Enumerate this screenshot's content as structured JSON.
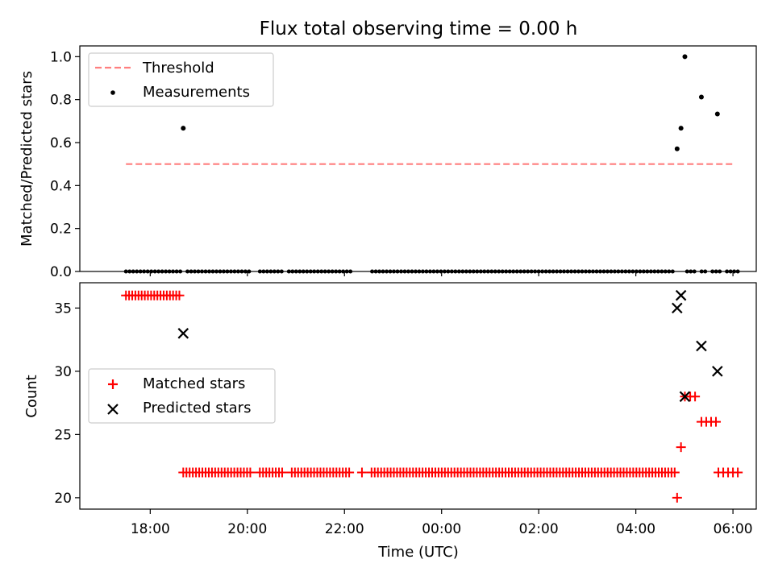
{
  "title": "Flux total observing time = 0.00 h",
  "colors": {
    "threshold": "#ff7f7f",
    "measurement": "#000000",
    "matched": "#ff0000",
    "predicted": "#000000",
    "axes": "#000000",
    "legend_border": "#cccccc"
  },
  "chart_data": [
    {
      "type": "scatter",
      "title": "Flux total observing time = 0.00 h",
      "xlabel": "",
      "ylabel": "Matched/Predicted stars",
      "xlim_hours": [
        16.55,
        30.48
      ],
      "ylim": [
        0,
        1.05
      ],
      "xticks": [
        18,
        20,
        22,
        24,
        26,
        28,
        30
      ],
      "yticks": [
        0.0,
        0.2,
        0.4,
        0.6,
        0.8,
        1.0
      ],
      "ytick_labels": [
        "0.0",
        "0.2",
        "0.4",
        "0.6",
        "0.8",
        "1.0"
      ],
      "legend_position": "top-left",
      "series": [
        {
          "name": "Threshold",
          "kind": "dashed-line",
          "x": [
            17.5,
            30.05
          ],
          "y": [
            0.5,
            0.5
          ]
        },
        {
          "name": "Measurements",
          "kind": "dots",
          "zero_range": [
            17.5,
            30.1
          ],
          "zero_count": 170,
          "zero_gaps": [
            [
              18.65,
              18.75
            ],
            [
              20.1,
              20.2
            ],
            [
              20.75,
              20.85
            ],
            [
              22.15,
              22.35
            ],
            [
              22.42,
              22.55
            ],
            [
              28.83,
              29.05
            ],
            [
              29.22,
              29.3
            ],
            [
              29.45,
              29.55
            ],
            [
              29.78,
              29.85
            ]
          ],
          "points": [
            [
              18.68,
              0.667
            ],
            [
              28.85,
              0.571
            ],
            [
              28.93,
              0.667
            ],
            [
              29.01,
              1.0
            ],
            [
              29.35,
              0.812
            ],
            [
              29.68,
              0.733
            ]
          ]
        }
      ]
    },
    {
      "type": "scatter",
      "xlabel": "Time (UTC)",
      "ylabel": "Count",
      "xlim_hours": [
        16.55,
        30.48
      ],
      "ylim": [
        19.1,
        37.0
      ],
      "xticks": [
        18,
        20,
        22,
        24,
        26,
        28,
        30
      ],
      "xtick_labels": [
        "18:00",
        "20:00",
        "22:00",
        "00:00",
        "02:00",
        "04:00",
        "06:00"
      ],
      "yticks": [
        20,
        25,
        30,
        35
      ],
      "legend_position": "center-left",
      "series": [
        {
          "name": "Matched stars",
          "marker": "plus",
          "segments": [
            {
              "from": 17.5,
              "to": 18.6,
              "value": 36,
              "count": 18
            },
            {
              "from": 18.68,
              "to": 28.8,
              "value": 22,
              "count": 155
            }
          ],
          "segment_gaps": [
            [
              20.1,
              20.2
            ],
            [
              20.75,
              20.85
            ],
            [
              22.15,
              22.35
            ],
            [
              22.42,
              22.55
            ]
          ],
          "points": [
            [
              28.85,
              20
            ],
            [
              28.93,
              24
            ],
            [
              29.01,
              28
            ],
            [
              29.12,
              28
            ],
            [
              29.22,
              28
            ],
            [
              29.35,
              26
            ],
            [
              29.45,
              26
            ],
            [
              29.55,
              26
            ],
            [
              29.65,
              26
            ],
            [
              29.7,
              22
            ],
            [
              29.8,
              22
            ],
            [
              29.9,
              22
            ],
            [
              30.0,
              22
            ],
            [
              30.1,
              22
            ]
          ]
        },
        {
          "name": "Predicted stars",
          "marker": "x",
          "points": [
            [
              18.68,
              33
            ],
            [
              28.85,
              35
            ],
            [
              28.93,
              36
            ],
            [
              29.01,
              28
            ],
            [
              29.35,
              32
            ],
            [
              29.68,
              30
            ]
          ]
        }
      ]
    }
  ]
}
